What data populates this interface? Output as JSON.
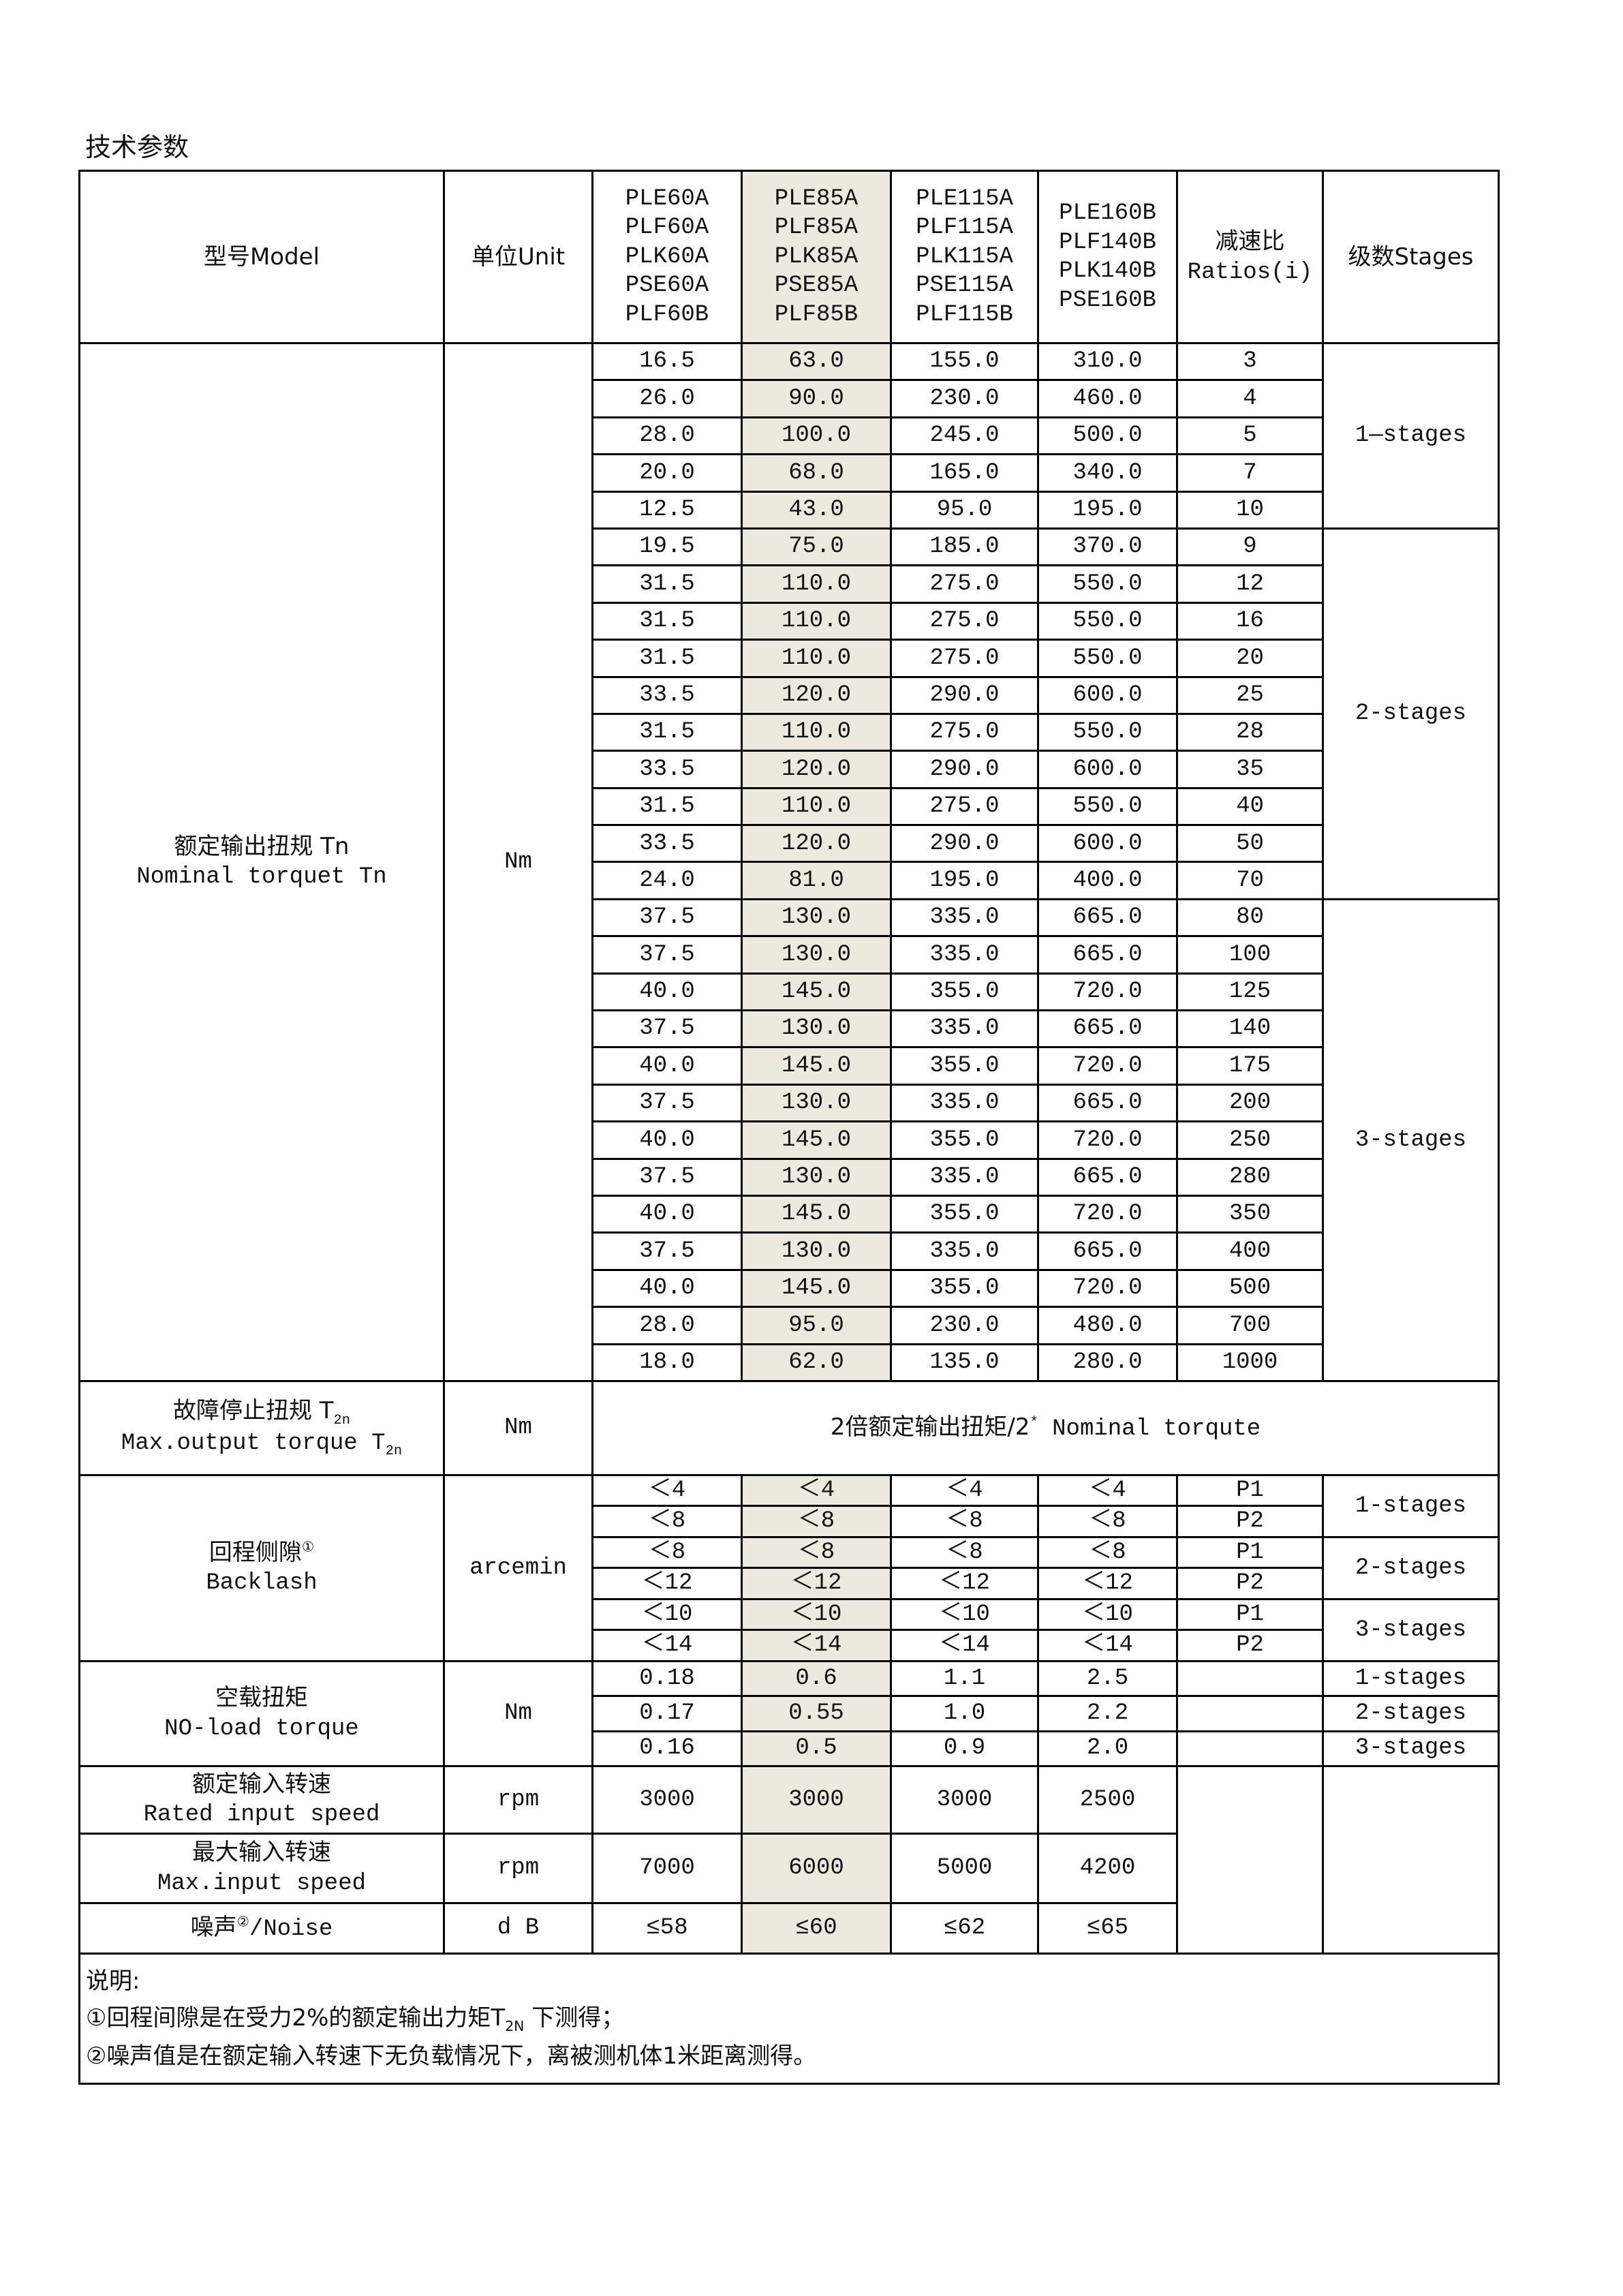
{
  "title": "技术参数",
  "highlight_color": "#ECEADF",
  "header": {
    "model": "型号Model",
    "unit": "单位Unit",
    "models": [
      [
        "PLE60A",
        "PLF60A",
        "PLK60A",
        "PSE60A",
        "PLF60B"
      ],
      [
        "PLE85A",
        "PLF85A",
        "PLK85A",
        "PSE85A",
        "PLF85B"
      ],
      [
        "PLE115A",
        "PLF115A",
        "PLK115A",
        "PSE115A",
        "PLF115B"
      ],
      [
        "PLE160B",
        "PLF140B",
        "PLK140B",
        "PSE160B"
      ]
    ],
    "ratios_cn": "减速比",
    "ratios_en": "Ratios(i)",
    "stages": "级数Stages"
  },
  "nominal_torque": {
    "label_cn": "额定输出扭规 Tn",
    "label_en": "Nominal torquet Tn",
    "unit": "Nm",
    "rows": [
      [
        "16.5",
        "63.0",
        "155.0",
        "310.0",
        "3"
      ],
      [
        "26.0",
        "90.0",
        "230.0",
        "460.0",
        "4"
      ],
      [
        "28.0",
        "100.0",
        "245.0",
        "500.0",
        "5"
      ],
      [
        "20.0",
        "68.0",
        "165.0",
        "340.0",
        "7"
      ],
      [
        "12.5",
        "43.0",
        "95.0",
        "195.0",
        "10"
      ],
      [
        "19.5",
        "75.0",
        "185.0",
        "370.0",
        "9"
      ],
      [
        "31.5",
        "110.0",
        "275.0",
        "550.0",
        "12"
      ],
      [
        "31.5",
        "110.0",
        "275.0",
        "550.0",
        "16"
      ],
      [
        "31.5",
        "110.0",
        "275.0",
        "550.0",
        "20"
      ],
      [
        "33.5",
        "120.0",
        "290.0",
        "600.0",
        "25"
      ],
      [
        "31.5",
        "110.0",
        "275.0",
        "550.0",
        "28"
      ],
      [
        "33.5",
        "120.0",
        "290.0",
        "600.0",
        "35"
      ],
      [
        "31.5",
        "110.0",
        "275.0",
        "550.0",
        "40"
      ],
      [
        "33.5",
        "120.0",
        "290.0",
        "600.0",
        "50"
      ],
      [
        "24.0",
        "81.0",
        "195.0",
        "400.0",
        "70"
      ],
      [
        "37.5",
        "130.0",
        "335.0",
        "665.0",
        "80"
      ],
      [
        "37.5",
        "130.0",
        "335.0",
        "665.0",
        "100"
      ],
      [
        "40.0",
        "145.0",
        "355.0",
        "720.0",
        "125"
      ],
      [
        "37.5",
        "130.0",
        "335.0",
        "665.0",
        "140"
      ],
      [
        "40.0",
        "145.0",
        "355.0",
        "720.0",
        "175"
      ],
      [
        "37.5",
        "130.0",
        "335.0",
        "665.0",
        "200"
      ],
      [
        "40.0",
        "145.0",
        "355.0",
        "720.0",
        "250"
      ],
      [
        "37.5",
        "130.0",
        "335.0",
        "665.0",
        "280"
      ],
      [
        "40.0",
        "145.0",
        "355.0",
        "720.0",
        "350"
      ],
      [
        "37.5",
        "130.0",
        "335.0",
        "665.0",
        "400"
      ],
      [
        "40.0",
        "145.0",
        "355.0",
        "720.0",
        "500"
      ],
      [
        "28.0",
        "95.0",
        "230.0",
        "480.0",
        "700"
      ],
      [
        "18.0",
        "62.0",
        "135.0",
        "280.0",
        "1000"
      ]
    ],
    "stage_groups": [
      {
        "label": "1—stages",
        "rows": 5
      },
      {
        "label": "2-stages",
        "rows": 10
      },
      {
        "label": "3-stages",
        "rows": 13
      }
    ]
  },
  "max_torque": {
    "label_cn": "故障停止扭规 T",
    "label_cn_sub": "2n",
    "label_en": "Max.output torque T",
    "label_en_sub": "2n",
    "unit": "Nm",
    "value": "2倍额定输出扭矩/2",
    "value_sup": "*",
    "value_tail": " Nominal torqute"
  },
  "backlash": {
    "label_cn": "回程侧隙",
    "label_sup": "①",
    "label_en": "Backlash",
    "unit": "arcemin",
    "rows": [
      [
        "＜4",
        "＜4",
        "＜4",
        "＜4",
        "P1"
      ],
      [
        "＜8",
        "＜8",
        "＜8",
        "＜8",
        "P2"
      ],
      [
        "＜8",
        "＜8",
        "＜8",
        "＜8",
        "P1"
      ],
      [
        "＜12",
        "＜12",
        "＜12",
        "＜12",
        "P2"
      ],
      [
        "＜10",
        "＜10",
        "＜10",
        "＜10",
        "P1"
      ],
      [
        "＜14",
        "＜14",
        "＜14",
        "＜14",
        "P2"
      ]
    ],
    "stage_groups": [
      "1-stages",
      "2-stages",
      "3-stages"
    ]
  },
  "no_load": {
    "label_cn": "空载扭矩",
    "label_en": "NO-load torque",
    "unit": "Nm",
    "rows": [
      [
        "0.18",
        "0.6",
        "1.1",
        "2.5",
        "",
        "1-stages"
      ],
      [
        "0.17",
        "0.55",
        "1.0",
        "2.2",
        "",
        "2-stages"
      ],
      [
        "0.16",
        "0.5",
        "0.9",
        "2.0",
        "",
        "3-stages"
      ]
    ]
  },
  "rated_speed": {
    "label_cn": "额定输入转速",
    "label_en": "Rated input speed",
    "unit": "rpm",
    "values": [
      "3000",
      "3000",
      "3000",
      "2500"
    ]
  },
  "max_speed": {
    "label_cn": "最大输入转速",
    "label_en": "Max.input speed",
    "unit": "rpm",
    "values": [
      "7000",
      "6000",
      "5000",
      "4200"
    ]
  },
  "noise": {
    "label_cn": "噪声",
    "label_sup": "②",
    "label_en": "/Noise",
    "unit": "d B",
    "values": [
      "≤58",
      "≤60",
      "≤62",
      "≤65"
    ]
  },
  "notes": {
    "heading": "说明:",
    "note1": "①回程间隙是在受力2%的额定输出力矩T",
    "note1_sub": "2N",
    "note1_tail": " 下测得；",
    "note2": "②噪声值是在额定输入转速下无负载情况下，离被测机体1米距离测得。"
  }
}
